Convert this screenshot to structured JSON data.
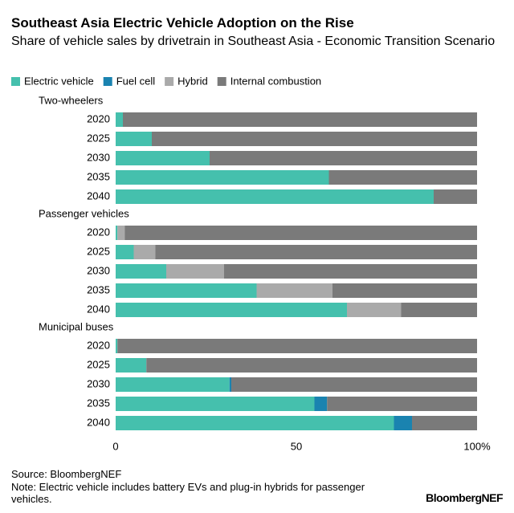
{
  "chart_data": {
    "type": "stacked-barh",
    "title": "Southeast Asia Electric Vehicle Adoption on the Rise",
    "subtitle": "Share of vehicle sales by drivetrain in Southeast Asia - Economic Transition Scenario",
    "groups": [
      {
        "label": "Two-wheelers",
        "categories": [
          "2020",
          "2025",
          "2030",
          "2035",
          "2040"
        ]
      },
      {
        "label": "Passenger vehicles",
        "categories": [
          "2020",
          "2025",
          "2030",
          "2035",
          "2040"
        ]
      },
      {
        "label": "Municipal buses",
        "categories": [
          "2020",
          "2025",
          "2030",
          "2035",
          "2040"
        ]
      }
    ],
    "series": [
      {
        "name": "Electric vehicle",
        "color": "#45c0ad",
        "values": [
          2,
          10,
          26,
          59,
          88,
          0.5,
          5,
          14,
          39,
          64,
          0.5,
          8.5,
          31.5,
          55,
          77
        ]
      },
      {
        "name": "Fuel cell",
        "color": "#1a83b0",
        "values": [
          0,
          0,
          0,
          0,
          0,
          0,
          0,
          0,
          0,
          0,
          0,
          0,
          0.5,
          3.5,
          5
        ]
      },
      {
        "name": "Hybrid",
        "color": "#aaaaaa",
        "values": [
          0,
          0,
          0,
          0,
          0,
          2,
          6,
          16,
          21,
          15,
          0,
          0,
          0,
          0,
          0
        ]
      },
      {
        "name": "Internal combustion",
        "color": "#7a7a7a",
        "values": [
          98,
          90,
          74,
          41,
          12,
          97.5,
          89,
          70,
          40,
          21,
          99.5,
          91.5,
          68,
          41.5,
          18
        ]
      }
    ],
    "xlim": [
      0,
      100
    ],
    "xticks": [
      0,
      50,
      {
        "value": 100,
        "label": "100%"
      }
    ],
    "source": "Source: BloombergNEF",
    "note": "Note: Electric vehicle includes battery EVs and plug-in hybrids for passenger vehicles.",
    "brand": "BloombergNEF"
  }
}
